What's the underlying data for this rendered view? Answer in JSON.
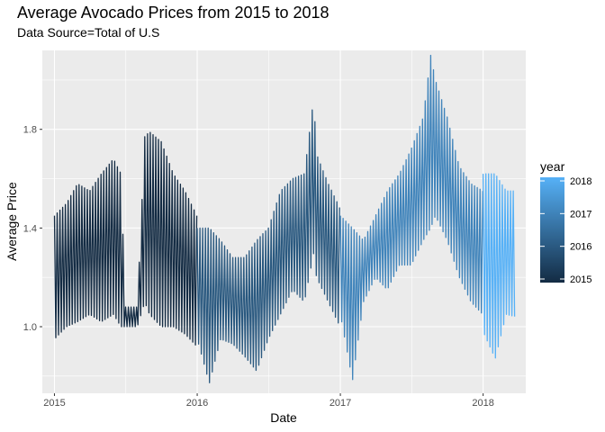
{
  "chart_data": {
    "type": "line",
    "title": "Average Avocado Prices from 2015 to 2018",
    "subtitle": "Data Source=Total of U.S",
    "xlabel": "Date",
    "ylabel": "Average Price",
    "x_ticks": [
      "2015",
      "2016",
      "2017",
      "2018"
    ],
    "y_ticks": [
      1.0,
      1.4,
      1.8
    ],
    "xlim": [
      "2014-12-01",
      "2018-04-20"
    ],
    "ylim": [
      0.73,
      2.12
    ],
    "grid": true,
    "legend": {
      "title": "year",
      "position": "right",
      "labels": [
        "2018",
        "2017",
        "2016",
        "2015"
      ],
      "color_low": "#132B43",
      "color_high": "#56B1F7"
    },
    "color_by": "year",
    "note": "Weekly price series, dense oscillation; summarized as weekly high/low envelope",
    "series": [
      {
        "name": "2015",
        "dates": [
          "2015-01-01",
          "2015-02-01",
          "2015-03-01",
          "2015-04-01",
          "2015-05-01",
          "2015-06-01",
          "2015-06-20",
          "2015-07-01",
          "2015-08-01",
          "2015-08-20",
          "2015-09-01",
          "2015-10-01",
          "2015-11-01",
          "2015-12-01",
          "2015-12-31"
        ],
        "high": [
          1.45,
          1.5,
          1.58,
          1.55,
          1.62,
          1.68,
          1.62,
          1.08,
          1.08,
          1.77,
          1.79,
          1.75,
          1.62,
          1.55,
          1.45
        ],
        "low": [
          0.95,
          1.0,
          1.02,
          1.05,
          1.02,
          1.05,
          1.0,
          1.0,
          1.0,
          1.1,
          1.05,
          1.0,
          1.0,
          0.97,
          0.92
        ]
      },
      {
        "name": "2016",
        "dates": [
          "2016-01-01",
          "2016-02-01",
          "2016-03-01",
          "2016-04-01",
          "2016-05-01",
          "2016-06-01",
          "2016-07-01",
          "2016-08-01",
          "2016-09-01",
          "2016-10-01",
          "2016-10-25",
          "2016-11-01",
          "2016-12-01",
          "2016-12-31"
        ],
        "high": [
          1.4,
          1.4,
          1.35,
          1.28,
          1.28,
          1.35,
          1.4,
          1.55,
          1.6,
          1.62,
          1.93,
          1.7,
          1.58,
          1.48
        ],
        "low": [
          0.95,
          0.77,
          0.95,
          0.93,
          0.88,
          0.82,
          0.95,
          1.05,
          1.15,
          1.1,
          1.3,
          1.2,
          1.1,
          1.0
        ]
      },
      {
        "name": "2017",
        "dates": [
          "2017-01-01",
          "2017-02-01",
          "2017-03-01",
          "2017-04-01",
          "2017-05-01",
          "2017-06-01",
          "2017-07-01",
          "2017-08-01",
          "2017-08-20",
          "2017-09-01",
          "2017-10-01",
          "2017-11-01",
          "2017-12-01",
          "2017-12-31"
        ],
        "high": [
          1.45,
          1.4,
          1.35,
          1.45,
          1.55,
          1.62,
          1.72,
          1.85,
          2.1,
          2.0,
          1.85,
          1.65,
          1.58,
          1.55
        ],
        "low": [
          1.05,
          0.78,
          1.1,
          1.2,
          1.15,
          1.25,
          1.25,
          1.35,
          1.4,
          1.45,
          1.35,
          1.2,
          1.1,
          1.05
        ]
      },
      {
        "name": "2018",
        "dates": [
          "2018-01-01",
          "2018-02-01",
          "2018-03-01",
          "2018-03-25"
        ],
        "high": [
          1.62,
          1.62,
          1.55,
          1.55
        ],
        "low": [
          0.98,
          0.87,
          1.05,
          1.04
        ]
      }
    ]
  }
}
